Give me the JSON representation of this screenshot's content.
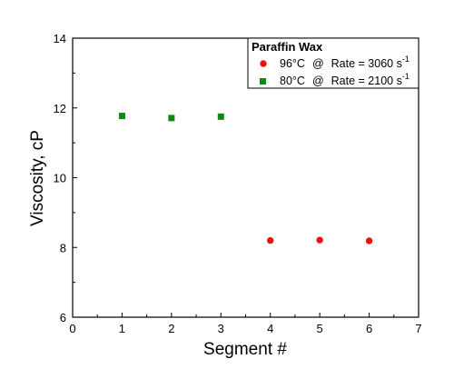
{
  "chart_data": {
    "type": "scatter",
    "xlabel": "Segment #",
    "ylabel": "Viscosity, cP",
    "xlim": [
      0,
      7
    ],
    "ylim": [
      6,
      14
    ],
    "xticks": [
      0,
      1,
      2,
      3,
      4,
      5,
      6,
      7
    ],
    "yticks": [
      6,
      8,
      10,
      12,
      14
    ],
    "grid": false,
    "legend": {
      "title": "Paraffin Wax",
      "placement": "top-right",
      "entries": [
        {
          "temp": "96°C",
          "at": "@",
          "rate_text": "Rate = 3060 s",
          "exponent": "-1"
        },
        {
          "temp": "80°C",
          "at": "@",
          "rate_text": "Rate = 2100 s",
          "exponent": "-1"
        }
      ]
    },
    "series": [
      {
        "marker": "circle",
        "color": "#ee1111",
        "x": [
          4,
          5,
          6
        ],
        "y": [
          8.2,
          8.21,
          8.19
        ]
      },
      {
        "marker": "square",
        "color": "#118811",
        "x": [
          1,
          2,
          3
        ],
        "y": [
          11.77,
          11.71,
          11.75
        ]
      }
    ]
  }
}
